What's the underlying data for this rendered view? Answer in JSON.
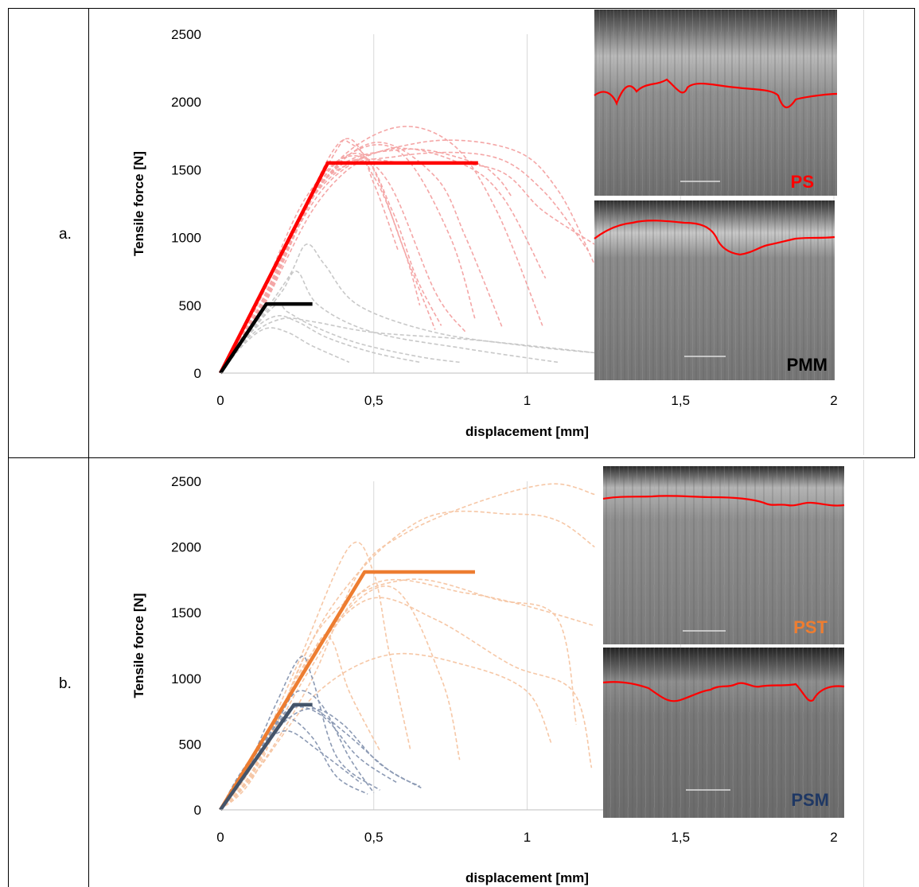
{
  "rows": [
    {
      "label": "a."
    },
    {
      "label": "b."
    }
  ],
  "chart_data": [
    {
      "type": "line",
      "xlabel": "displacement [mm]",
      "ylabel": "Tensile force [N]",
      "xlim": [
        0,
        2
      ],
      "ylim": [
        0,
        2500
      ],
      "x_ticks": [
        "0",
        "0,5",
        "1",
        "1,5",
        "2"
      ],
      "y_ticks": [
        "0",
        "500",
        "1000",
        "1500",
        "2000",
        "2500"
      ],
      "grid": "vertical",
      "inset_labels": [
        {
          "text": "PS",
          "color": "#ff0000"
        },
        {
          "text": "PMM",
          "color": "#000000"
        }
      ],
      "series": [
        {
          "name": "PS",
          "color": "#ff0000",
          "style": "solid",
          "x": [
            0,
            0.35,
            0.84
          ],
          "y": [
            0,
            1550,
            1550
          ]
        },
        {
          "name": "PMM",
          "color": "#000000",
          "style": "solid",
          "x": [
            0,
            0.15,
            0.3
          ],
          "y": [
            0,
            510,
            510
          ]
        }
      ],
      "tests": [
        {
          "color": "#f4a6a6",
          "x": [
            0,
            0.1,
            0.25,
            0.38,
            0.42,
            0.5,
            0.6,
            0.7
          ],
          "y": [
            0,
            450,
            1100,
            1650,
            1700,
            1500,
            900,
            320
          ]
        },
        {
          "color": "#f4a6a6",
          "x": [
            0,
            0.12,
            0.3,
            0.45,
            0.6,
            0.75,
            0.83
          ],
          "y": [
            0,
            500,
            1300,
            1650,
            1600,
            1000,
            400
          ]
        },
        {
          "color": "#f4a6a6",
          "x": [
            0,
            0.12,
            0.32,
            0.55,
            0.75,
            0.9,
            1.05
          ],
          "y": [
            0,
            450,
            1400,
            1800,
            1700,
            1200,
            350
          ]
        },
        {
          "color": "#f4a6a6",
          "x": [
            0,
            0.1,
            0.3,
            0.5,
            0.7,
            0.8,
            0.92
          ],
          "y": [
            0,
            420,
            1300,
            1700,
            1450,
            1000,
            330
          ]
        },
        {
          "color": "#f4a6a6",
          "x": [
            0,
            0.14,
            0.35,
            0.6,
            0.82,
            0.9,
            0.95
          ],
          "y": [
            0,
            520,
            1450,
            1650,
            1560,
            1450,
            1300
          ]
        },
        {
          "color": "#f4a6a6",
          "x": [
            0,
            0.12,
            0.3,
            0.45,
            0.5,
            0.58
          ],
          "y": [
            0,
            400,
            1200,
            1550,
            1400,
            900
          ]
        },
        {
          "color": "#f4a6a6",
          "x": [
            0,
            0.1,
            0.35,
            0.65,
            0.95,
            1.1,
            1.22
          ],
          "y": [
            0,
            380,
            1400,
            1700,
            1650,
            1350,
            800
          ]
        },
        {
          "color": "#f4a6a6",
          "x": [
            0,
            0.12,
            0.33,
            0.58,
            0.88,
            1.05,
            1.2
          ],
          "y": [
            0,
            430,
            1400,
            1600,
            1600,
            1350,
            900
          ]
        },
        {
          "color": "#f4a6a6",
          "x": [
            0,
            0.12,
            0.32,
            0.55,
            0.78,
            0.92,
            1.06
          ],
          "y": [
            0,
            450,
            1350,
            1650,
            1550,
            1300,
            700
          ]
        },
        {
          "color": "#f4a6a6",
          "x": [
            0,
            0.14,
            0.38,
            0.5,
            0.6,
            0.65
          ],
          "y": [
            0,
            500,
            1680,
            1450,
            900,
            500
          ]
        },
        {
          "color": "#f4a6a6",
          "x": [
            0,
            0.1,
            0.28,
            0.45,
            0.56,
            0.64,
            0.72
          ],
          "y": [
            0,
            400,
            1300,
            1620,
            1200,
            700,
            350
          ]
        },
        {
          "color": "#f4a6a6",
          "x": [
            0,
            0.12,
            0.3,
            0.42,
            0.55,
            0.7,
            0.8
          ],
          "y": [
            0,
            420,
            1300,
            1600,
            1400,
            600,
            300
          ]
        },
        {
          "color": "#f4a6a6",
          "x": [
            0,
            0.14,
            0.36,
            0.62,
            0.9,
            1.05,
            1.22
          ],
          "y": [
            0,
            500,
            1480,
            1550,
            1500,
            1200,
            950
          ]
        },
        {
          "color": "#c8c8c8",
          "x": [
            0,
            0.08,
            0.22,
            0.28,
            0.34,
            0.45,
            0.7,
            1.0,
            1.22
          ],
          "y": [
            0,
            250,
            700,
            950,
            800,
            500,
            300,
            200,
            150
          ]
        },
        {
          "color": "#c8c8c8",
          "x": [
            0,
            0.1,
            0.2,
            0.25,
            0.32,
            0.5,
            0.8,
            1.1
          ],
          "y": [
            0,
            300,
            600,
            750,
            500,
            300,
            180,
            80
          ]
        },
        {
          "color": "#c8c8c8",
          "x": [
            0,
            0.08,
            0.18,
            0.22,
            0.3,
            0.45,
            0.65,
            0.78
          ],
          "y": [
            0,
            250,
            500,
            450,
            350,
            220,
            120,
            80
          ]
        },
        {
          "color": "#c8c8c8",
          "x": [
            0,
            0.1,
            0.2,
            0.3,
            0.5,
            0.8,
            1.1,
            1.22
          ],
          "y": [
            0,
            280,
            400,
            380,
            300,
            250,
            180,
            150
          ]
        },
        {
          "color": "#c8c8c8",
          "x": [
            0,
            0.1,
            0.18,
            0.25,
            0.35,
            0.5,
            0.65
          ],
          "y": [
            0,
            300,
            420,
            380,
            260,
            150,
            80
          ]
        },
        {
          "color": "#c8c8c8",
          "x": [
            0,
            0.08,
            0.15,
            0.22,
            0.3,
            0.42
          ],
          "y": [
            0,
            220,
            330,
            300,
            200,
            80
          ]
        }
      ]
    },
    {
      "type": "line",
      "xlabel": "displacement [mm]",
      "ylabel": "Tensile force [N]",
      "xlim": [
        0,
        2
      ],
      "ylim": [
        0,
        2500
      ],
      "x_ticks": [
        "0",
        "0,5",
        "1",
        "1,5",
        "2"
      ],
      "y_ticks": [
        "0",
        "500",
        "1000",
        "1500",
        "2000",
        "2500"
      ],
      "grid": "vertical",
      "inset_labels": [
        {
          "text": "PST",
          "color": "#ed7d31"
        },
        {
          "text": "PSM",
          "color": "#1f3864"
        }
      ],
      "series": [
        {
          "name": "PST",
          "color": "#ed7d31",
          "style": "solid",
          "x": [
            0,
            0.47,
            0.83
          ],
          "y": [
            0,
            1810,
            1810
          ]
        },
        {
          "name": "PSM",
          "color": "#44546a",
          "style": "solid",
          "x": [
            0,
            0.24,
            0.3
          ],
          "y": [
            0,
            800,
            800
          ]
        }
      ],
      "tests": [
        {
          "color": "#f6c7a6",
          "x": [
            0,
            0.12,
            0.3,
            0.45,
            0.6,
            0.85,
            1.08,
            1.22
          ],
          "y": [
            0,
            300,
            1000,
            1800,
            2100,
            2350,
            2480,
            2400
          ]
        },
        {
          "color": "#f6c7a6",
          "x": [
            0,
            0.1,
            0.25,
            0.42,
            0.5,
            0.55,
            0.62
          ],
          "y": [
            0,
            320,
            1100,
            2000,
            1800,
            1200,
            450
          ]
        },
        {
          "color": "#f6c7a6",
          "x": [
            0,
            0.12,
            0.35,
            0.65,
            0.95,
            1.1,
            1.22
          ],
          "y": [
            0,
            330,
            1500,
            2200,
            2250,
            2200,
            2000
          ]
        },
        {
          "color": "#f6c7a6",
          "x": [
            0,
            0.12,
            0.33,
            0.6,
            0.9,
            1.1,
            1.16
          ],
          "y": [
            0,
            300,
            1400,
            1750,
            1600,
            1450,
            650
          ]
        },
        {
          "color": "#f6c7a6",
          "x": [
            0,
            0.1,
            0.3,
            0.5,
            0.8,
            1.0,
            1.22
          ],
          "y": [
            0,
            280,
            1100,
            1720,
            1650,
            1550,
            1400
          ]
        },
        {
          "color": "#f6c7a6",
          "x": [
            0,
            0.1,
            0.3,
            0.55,
            0.72,
            0.78
          ],
          "y": [
            0,
            280,
            1200,
            1700,
            1000,
            380
          ]
        },
        {
          "color": "#f6c7a6",
          "x": [
            0,
            0.1,
            0.28,
            0.48,
            0.7,
            0.95,
            1.15,
            1.21
          ],
          "y": [
            0,
            260,
            1100,
            1600,
            1450,
            1100,
            900,
            320
          ]
        },
        {
          "color": "#f6c7a6",
          "x": [
            0,
            0.12,
            0.32,
            0.55,
            0.8,
            1.0,
            1.08
          ],
          "y": [
            0,
            300,
            900,
            1180,
            1100,
            900,
            500
          ]
        },
        {
          "color": "#f6c7a6",
          "x": [
            0,
            0.1,
            0.3,
            0.36,
            0.42,
            0.52
          ],
          "y": [
            0,
            280,
            1200,
            1300,
            900,
            450
          ]
        },
        {
          "color": "#8c9ab4",
          "x": [
            0,
            0.08,
            0.18,
            0.26,
            0.3,
            0.38,
            0.52
          ],
          "y": [
            0,
            280,
            800,
            1160,
            1000,
            400,
            150
          ]
        },
        {
          "color": "#8c9ab4",
          "x": [
            0,
            0.08,
            0.2,
            0.28,
            0.4,
            0.55,
            0.65
          ],
          "y": [
            0,
            260,
            700,
            800,
            600,
            300,
            180
          ]
        },
        {
          "color": "#8c9ab4",
          "x": [
            0,
            0.08,
            0.18,
            0.25,
            0.33,
            0.42,
            0.5
          ],
          "y": [
            0,
            260,
            650,
            900,
            800,
            400,
            130
          ]
        },
        {
          "color": "#8c9ab4",
          "x": [
            0,
            0.07,
            0.16,
            0.24,
            0.34,
            0.45,
            0.58
          ],
          "y": [
            0,
            240,
            600,
            780,
            700,
            400,
            200
          ]
        },
        {
          "color": "#8c9ab4",
          "x": [
            0,
            0.08,
            0.2,
            0.3,
            0.4,
            0.52,
            0.66
          ],
          "y": [
            0,
            270,
            650,
            770,
            650,
            350,
            160
          ]
        },
        {
          "color": "#8c9ab4",
          "x": [
            0,
            0.06,
            0.14,
            0.22,
            0.32,
            0.46
          ],
          "y": [
            0,
            260,
            500,
            600,
            450,
            200
          ]
        },
        {
          "color": "#8c9ab4",
          "x": [
            0,
            0.07,
            0.16,
            0.22,
            0.3,
            0.38,
            0.48
          ],
          "y": [
            0,
            250,
            580,
            700,
            550,
            250,
            120
          ]
        }
      ]
    }
  ]
}
